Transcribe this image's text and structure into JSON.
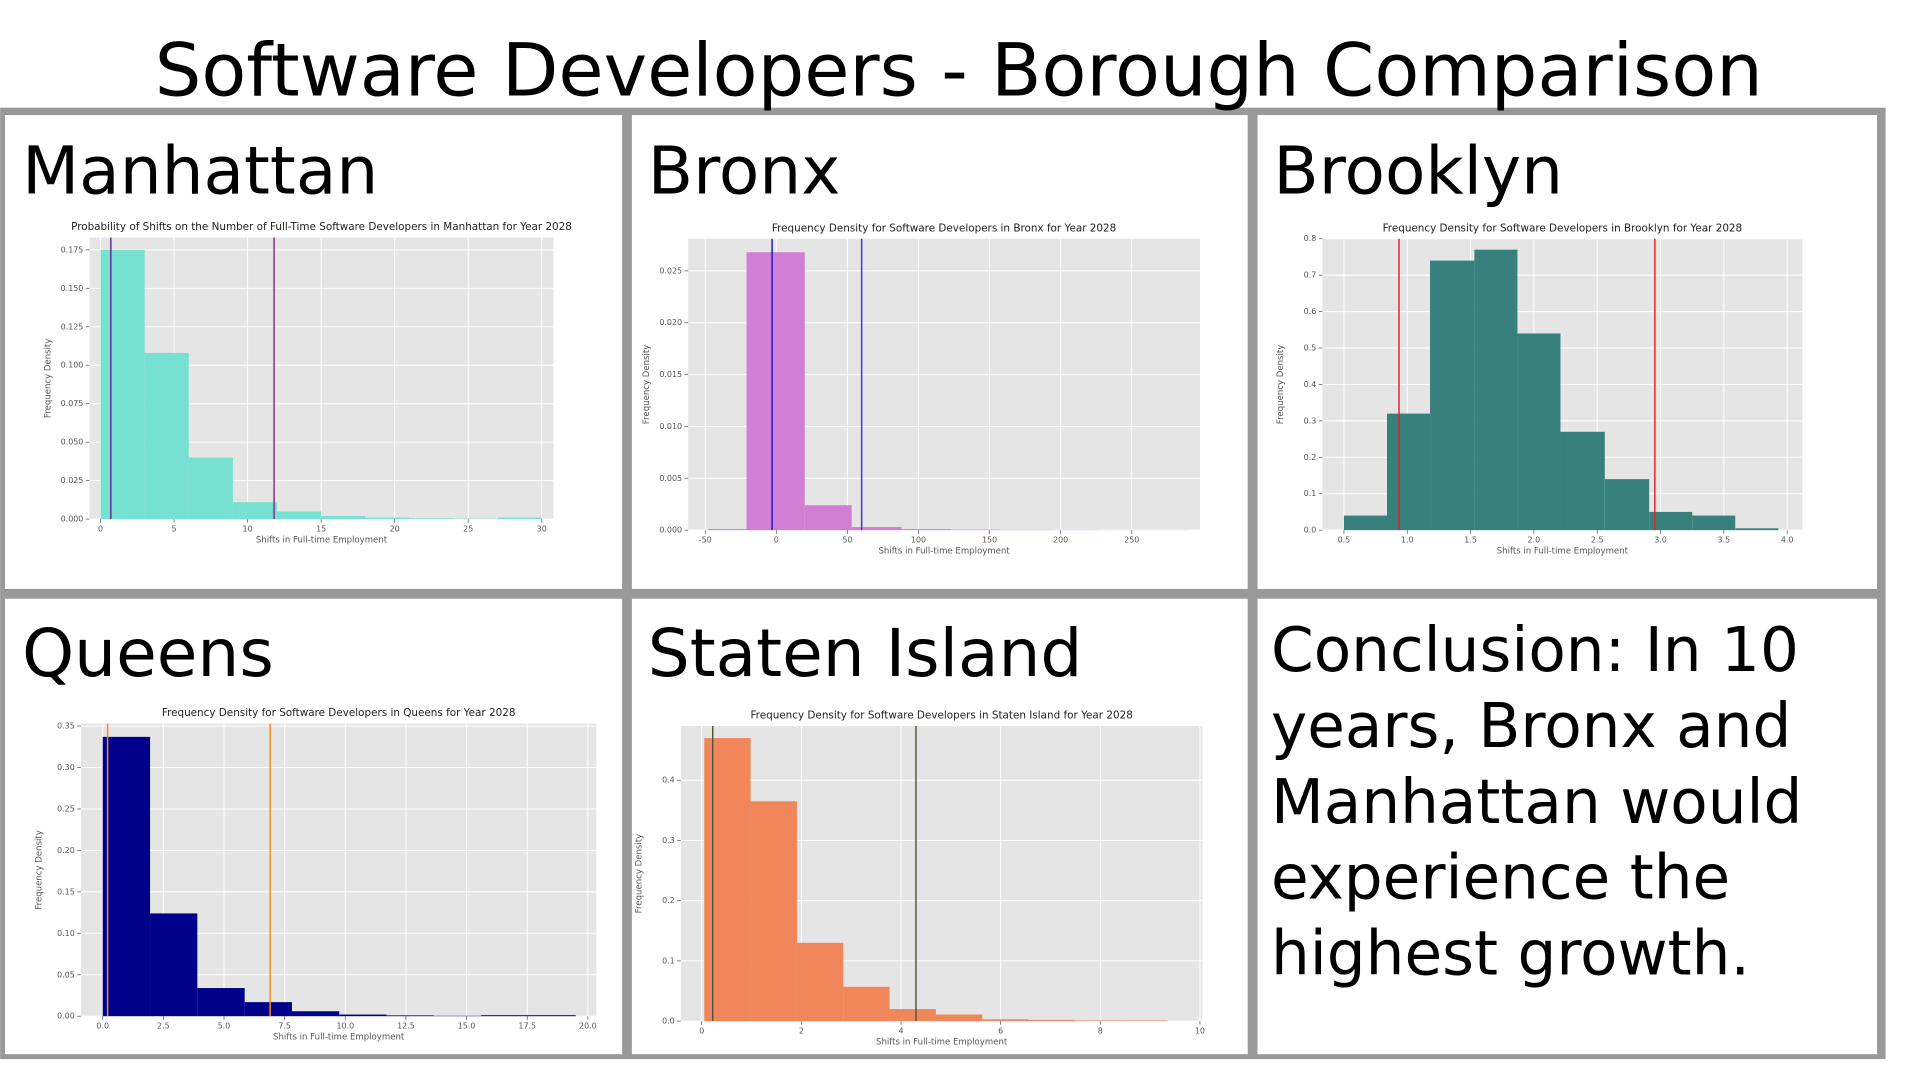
{
  "title": "Software Developers - Borough Comparison",
  "conclusion": "Conclusion: In 10 years, Bronx and Manhattan would experience the highest growth.",
  "chart_data": [
    {
      "type": "histogram",
      "heading": "Manhattan",
      "title": "Probability of Shifts on the Number of Full-Time Software Developers in Manhattan for Year 2028",
      "x_label": "Shifts in Full-time Employment",
      "y_label": "Frequency Density",
      "bins": [
        0,
        3,
        6,
        9,
        12,
        15,
        18,
        21,
        24,
        27,
        30
      ],
      "values": [
        0.175,
        0.108,
        0.04,
        0.011,
        0.005,
        0.002,
        0.001,
        0.0005,
        0.0003,
        0.001
      ],
      "color": "#76e0d1",
      "lines": [
        {
          "x": 0.7,
          "color": "#5b2d91"
        },
        {
          "x": 11.8,
          "color": "#8b2a8b"
        }
      ],
      "xlim": [
        -0.75,
        30.8
      ],
      "ylim": [
        0,
        0.183
      ],
      "xticks": [
        0,
        5,
        10,
        15,
        20,
        25,
        30
      ],
      "yticks": [
        {
          "value": 0,
          "label": "0.000"
        },
        {
          "value": 0.025,
          "label": "0.025"
        },
        {
          "value": 0.05,
          "label": "0.050"
        },
        {
          "value": 0.075,
          "label": "0.075"
        },
        {
          "value": 0.1,
          "label": "0.100"
        },
        {
          "value": 0.125,
          "label": "0.125"
        },
        {
          "value": 0.15,
          "label": "0.150"
        },
        {
          "value": 0.175,
          "label": "0.175"
        }
      ],
      "grid": true
    },
    {
      "type": "histogram",
      "heading": "Bronx",
      "title": "Frequency Density for Software Developers in Bronx for Year 2028",
      "x_label": "Shifts in Full-time Employment",
      "y_label": "Frequency Density",
      "bins": [
        -48,
        -21,
        20,
        53,
        88,
        123,
        158,
        193,
        228,
        263,
        290
      ],
      "values": [
        0.0001,
        0.0268,
        0.0024,
        0.0003,
        0.0001,
        5e-05,
        3e-05,
        2e-05,
        1e-05,
        1e-05
      ],
      "color": "#d17fd4",
      "lines": [
        {
          "x": -3,
          "color": "#1a1acc"
        },
        {
          "x": 60,
          "color": "#3333ff"
        }
      ],
      "xlim": [
        -62,
        298
      ],
      "ylim": [
        0,
        0.0281
      ],
      "xticks": [
        -50,
        0,
        50,
        100,
        150,
        200,
        250
      ],
      "yticks": [
        {
          "value": 0,
          "label": "0.000"
        },
        {
          "value": 0.005,
          "label": "0.005"
        },
        {
          "value": 0.01,
          "label": "0.010"
        },
        {
          "value": 0.015,
          "label": "0.015"
        },
        {
          "value": 0.02,
          "label": "0.020"
        },
        {
          "value": 0.025,
          "label": "0.025"
        }
      ],
      "grid": true
    },
    {
      "type": "histogram",
      "heading": "Brooklyn",
      "title": "Frequency Density for Software Developers in Brooklyn for Year 2028",
      "x_label": "Shifts in Full-time Employment",
      "y_label": "Frequency Density",
      "bins": [
        0.5,
        0.84,
        1.18,
        1.53,
        1.87,
        2.21,
        2.56,
        2.91,
        3.25,
        3.59,
        3.93
      ],
      "values": [
        0.04,
        0.32,
        0.74,
        0.77,
        0.54,
        0.27,
        0.14,
        0.05,
        0.04,
        0.005
      ],
      "color": "#37807c",
      "lines": [
        {
          "x": 0.935,
          "color": "#d62728"
        },
        {
          "x": 2.955,
          "color": "#d62728"
        }
      ],
      "xlim": [
        0.33,
        4.12
      ],
      "ylim": [
        0,
        0.8
      ],
      "xticks": [
        0.5,
        {
          "value": 1,
          "label": "1.0"
        },
        1.5,
        {
          "value": 2,
          "label": "2.0"
        },
        2.5,
        {
          "value": 3,
          "label": "3.0"
        },
        3.5,
        {
          "value": 4,
          "label": "4.0"
        }
      ],
      "yticks": [
        {
          "value": 0,
          "label": "0.0"
        },
        0.1,
        0.2,
        0.3,
        0.4,
        0.5,
        0.6,
        0.7,
        0.8
      ],
      "grid": true
    },
    {
      "type": "histogram",
      "heading": "Queens",
      "title": "Frequency Density for Software Developers in Queens for Year 2028",
      "x_label": "Shifts in Full-time Employment",
      "y_label": "Frequency Density",
      "bins": [
        0,
        1.95,
        3.9,
        5.85,
        7.8,
        9.75,
        11.7,
        13.65,
        15.6,
        17.55,
        19.5
      ],
      "values": [
        0.337,
        0.124,
        0.034,
        0.017,
        0.006,
        0.002,
        0.001,
        0.0005,
        0.0012,
        0.0012
      ],
      "color": "#00008b",
      "lines": [
        {
          "x": 0.2,
          "color": "#ff8c1a"
        },
        {
          "x": 6.9,
          "color": "#ff8c1a"
        }
      ],
      "xlim": [
        -0.9,
        20.35
      ],
      "ylim": [
        0,
        0.353
      ],
      "xticks": [
        {
          "value": 0,
          "label": "0.0"
        },
        2.5,
        {
          "value": 5,
          "label": "5.0"
        },
        7.5,
        {
          "value": 10,
          "label": "10.0"
        },
        12.5,
        {
          "value": 15,
          "label": "15.0"
        },
        17.5,
        {
          "value": 20,
          "label": "20.0"
        }
      ],
      "yticks": [
        {
          "value": 0,
          "label": "0.00"
        },
        0.05,
        {
          "value": 0.1,
          "label": "0.10"
        },
        0.15,
        {
          "value": 0.2,
          "label": "0.20"
        },
        0.25,
        {
          "value": 0.3,
          "label": "0.30"
        },
        0.35
      ],
      "grid": true
    },
    {
      "type": "histogram",
      "heading": "Staten Island",
      "title": "Frequency Density for Software Developers in Staten Island for Year 2028",
      "x_label": "Shifts in Full-time Employment",
      "y_label": "Frequency Density",
      "bins": [
        0.05,
        0.98,
        1.91,
        2.84,
        3.77,
        4.7,
        5.63,
        6.56,
        7.49,
        8.42,
        9.35
      ],
      "values": [
        0.47,
        0.365,
        0.13,
        0.057,
        0.02,
        0.011,
        0.003,
        0.002,
        0.001,
        0.001
      ],
      "color": "#f0865a",
      "lines": [
        {
          "x": 0.22,
          "color": "#4a5a3a"
        },
        {
          "x": 4.3,
          "color": "#4a5a3a"
        }
      ],
      "xlim": [
        -0.42,
        10.05
      ],
      "ylim": [
        0,
        0.49
      ],
      "xticks": [
        0,
        2,
        4,
        6,
        8,
        10
      ],
      "yticks": [
        {
          "value": 0,
          "label": "0.0"
        },
        0.1,
        0.2,
        0.3,
        0.4
      ],
      "grid": true
    }
  ]
}
